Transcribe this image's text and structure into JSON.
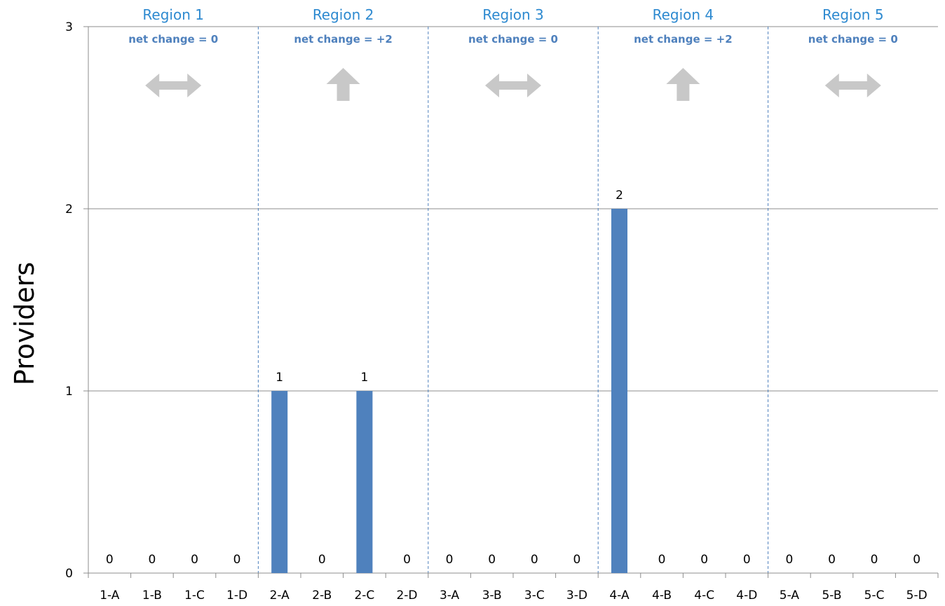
{
  "chart_data": {
    "type": "bar",
    "categories": [
      "1-A",
      "1-B",
      "1-C",
      "1-D",
      "2-A",
      "2-B",
      "2-C",
      "2-D",
      "3-A",
      "3-B",
      "3-C",
      "3-D",
      "4-A",
      "4-B",
      "4-C",
      "4-D",
      "5-A",
      "5-B",
      "5-C",
      "5-D"
    ],
    "values": [
      0,
      0,
      0,
      0,
      1,
      0,
      1,
      0,
      0,
      0,
      0,
      0,
      2,
      0,
      0,
      0,
      0,
      0,
      0,
      0
    ],
    "data_labels": [
      "0",
      "0",
      "0",
      "0",
      "1",
      "0",
      "1",
      "0",
      "0",
      "0",
      "0",
      "0",
      "2",
      "0",
      "0",
      "0",
      "0",
      "0",
      "0",
      "0"
    ],
    "ylabel": "Providers",
    "xlabel": "",
    "ylim": [
      0,
      3
    ],
    "yticks": [
      "0",
      "1",
      "2",
      "3"
    ],
    "grid": true,
    "bar_color": "#4f81bd",
    "gridline_color": "#8c8c8c",
    "divider_color": "#4f81bd",
    "regions": [
      {
        "title": "Region 1",
        "subtitle": "net change = 0",
        "arrow": "double-horizontal"
      },
      {
        "title": "Region 2",
        "subtitle": "net change = +2",
        "arrow": "up"
      },
      {
        "title": "Region 3",
        "subtitle": "net change = 0",
        "arrow": "double-horizontal"
      },
      {
        "title": "Region 4",
        "subtitle": "net change = +2",
        "arrow": "up"
      },
      {
        "title": "Region 5",
        "subtitle": "net change  = 0",
        "arrow": "double-horizontal"
      }
    ],
    "title_color": "#2e8ad0",
    "subtitle_color": "#4f81bd",
    "arrow_color": "#c8c8c8"
  }
}
